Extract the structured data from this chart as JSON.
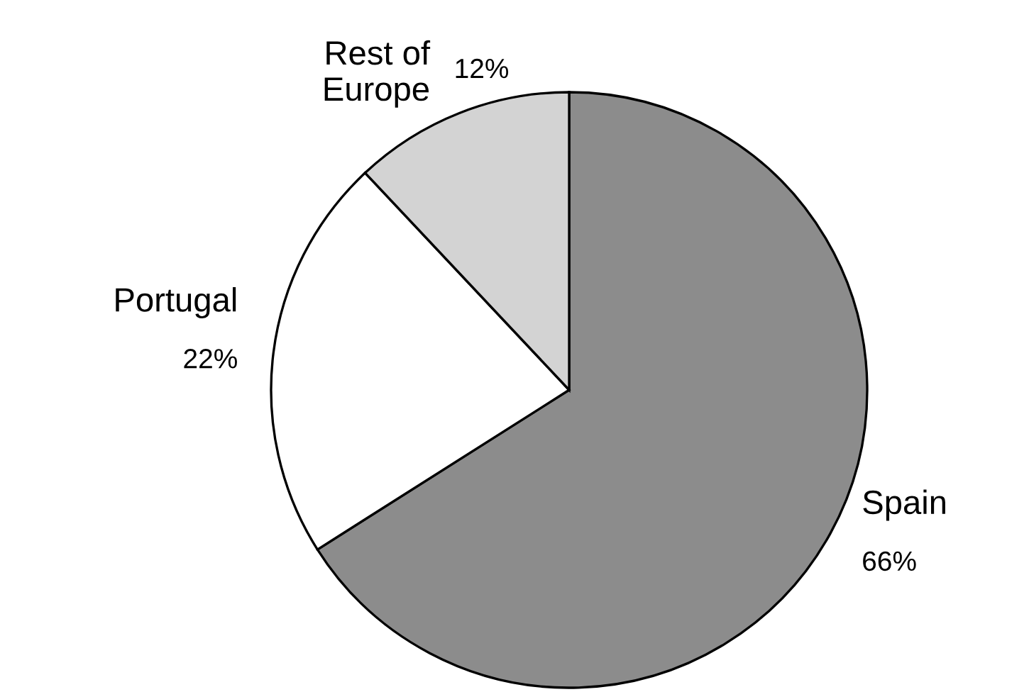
{
  "chart_data": {
    "type": "pie",
    "categories": [
      "Spain",
      "Portugal",
      "Rest of\nEurope"
    ],
    "values": [
      66,
      22,
      12
    ],
    "colors": [
      "#8c8c8c",
      "#ffffff",
      "#d3d3d3"
    ],
    "value_labels": [
      "66%",
      "22%",
      "12%"
    ]
  }
}
